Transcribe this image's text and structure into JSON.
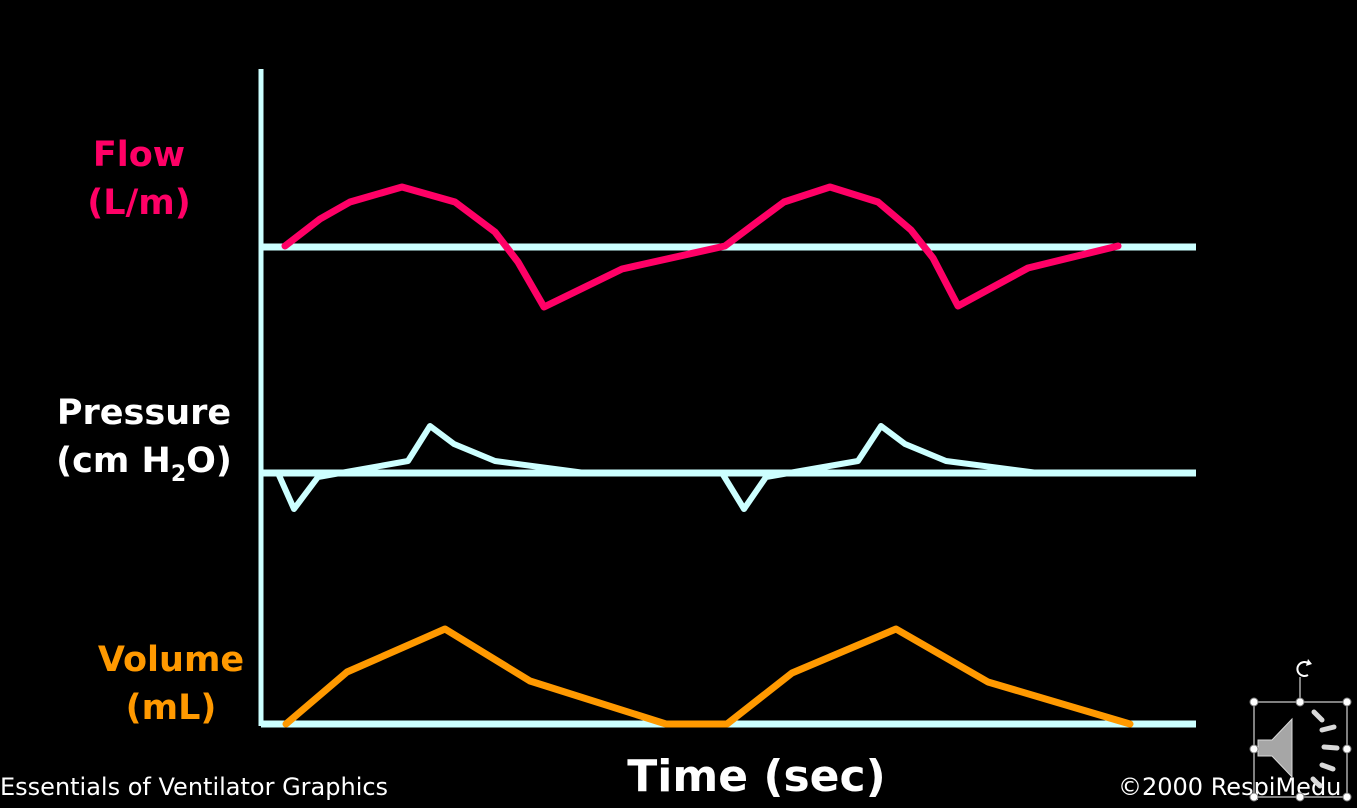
{
  "labels": {
    "flow_line1": "Flow",
    "flow_line2": "(L/m)",
    "pressure_line1": "Pressure",
    "pressure_line2_pre": "(cm H",
    "pressure_line2_sub": "2",
    "pressure_line2_post": "O)",
    "volume_line1": "Volume",
    "volume_line2": "(mL)",
    "time_axis": "Time (sec)"
  },
  "footer": {
    "left": "Essentials of Ventilator Graphics",
    "right": "©2000 RespiMedu"
  },
  "colors": {
    "background": "#000000",
    "axis": "#ccffff",
    "flow": "#ff0066",
    "pressure": "#ccffff",
    "volume": "#ff9900",
    "pressure_label": "#ffffff"
  },
  "icons": {
    "audio": "speaker-icon",
    "rotate": "rotate-handle-icon"
  }
}
